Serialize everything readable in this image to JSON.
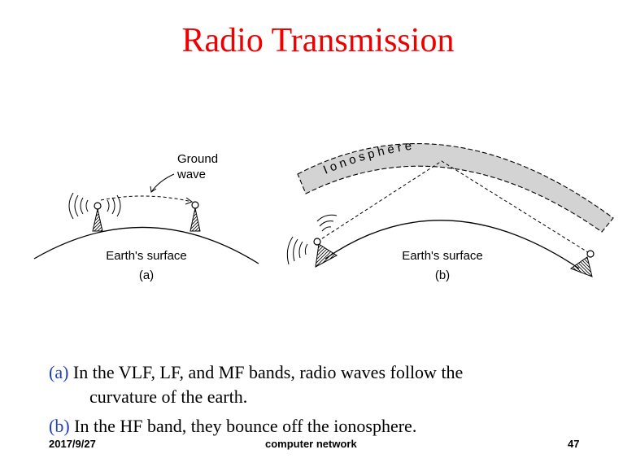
{
  "slide": {
    "title": "Radio Transmission"
  },
  "figure": {
    "panel_a": {
      "ground_wave_label_1": "Ground",
      "ground_wave_label_2": "wave",
      "surface_label": "Earth's surface",
      "caption": "(a)"
    },
    "panel_b": {
      "ionosphere_label": "Ionosphere",
      "surface_label": "Earth's surface",
      "caption": "(b)"
    }
  },
  "bullets": [
    {
      "tag": "(a)",
      "text": " In the VLF, LF, and MF bands, radio waves follow the",
      "continuation": "curvature of the earth."
    },
    {
      "tag": "(b)",
      "text": " In the HF band, they bounce off the ionosphere."
    }
  ],
  "footer": {
    "date": "2017/9/27",
    "course": "computer network",
    "page_number": "47"
  },
  "colors": {
    "title": "#ee0000",
    "bullet_tag": "#1f3fbf",
    "ionosphere_fill": "#d3d3d3"
  }
}
